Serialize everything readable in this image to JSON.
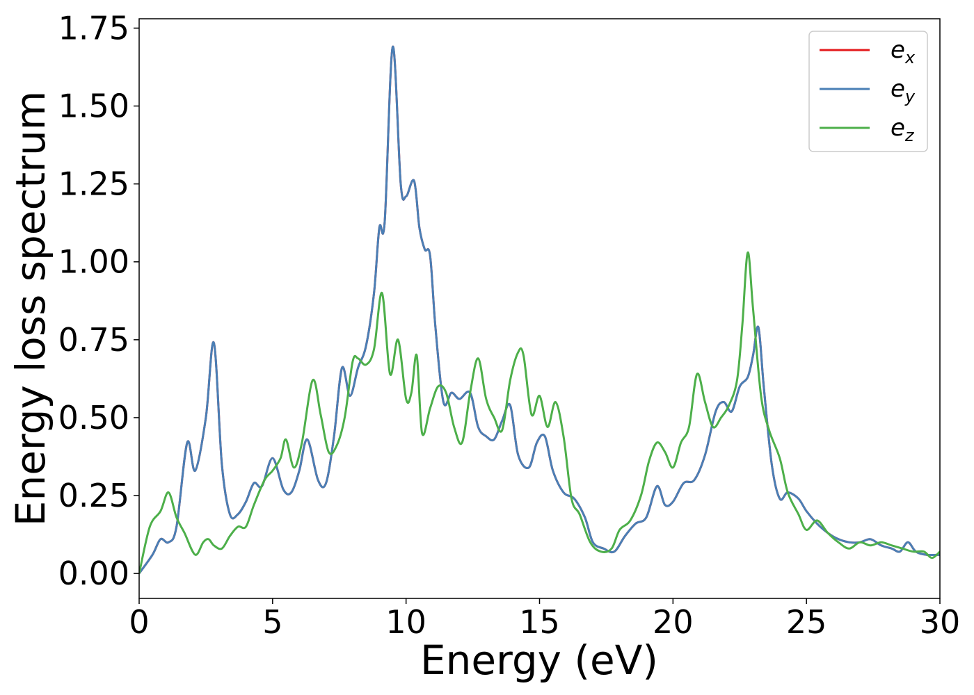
{
  "chart_data": {
    "type": "line",
    "title": "",
    "xlabel": "Energy (eV)",
    "ylabel": "Energy loss spectrum",
    "xlim": [
      0,
      30
    ],
    "ylim": [
      -0.08,
      1.78
    ],
    "xticks": [
      0,
      5,
      10,
      15,
      20,
      25,
      30
    ],
    "xtick_labels": [
      "0",
      "5",
      "10",
      "15",
      "20",
      "25",
      "30"
    ],
    "yticks": [
      0,
      0.25,
      0.5,
      0.75,
      1.0,
      1.25,
      1.5,
      1.75
    ],
    "ytick_labels": [
      "0.00",
      "0.25",
      "0.50",
      "0.75",
      "1.00",
      "1.25",
      "1.50",
      "1.75"
    ],
    "grid": false,
    "legend_position": "top-right",
    "series": [
      {
        "name": "e_x",
        "label_base": "e",
        "label_sub": "x",
        "color": "#e41a1c",
        "x": [
          0,
          0.5,
          0.8,
          1.1,
          1.4,
          1.8,
          2.1,
          2.5,
          2.8,
          3.1,
          3.4,
          3.7,
          4.0,
          4.3,
          4.6,
          5.0,
          5.4,
          5.7,
          6.0,
          6.3,
          6.7,
          7.0,
          7.3,
          7.6,
          7.9,
          8.2,
          8.5,
          8.8,
          9.0,
          9.2,
          9.5,
          9.8,
          10.0,
          10.3,
          10.5,
          10.7,
          10.9,
          11.1,
          11.4,
          11.7,
          12.0,
          12.4,
          12.7,
          13.0,
          13.3,
          13.6,
          13.9,
          14.2,
          14.6,
          14.9,
          15.2,
          15.5,
          15.9,
          16.3,
          16.7,
          17.0,
          17.4,
          17.8,
          18.2,
          18.6,
          19.0,
          19.4,
          19.7,
          20.0,
          20.4,
          20.8,
          21.2,
          21.6,
          21.9,
          22.2,
          22.5,
          22.8,
          23.0,
          23.2,
          23.4,
          23.7,
          24.0,
          24.3,
          24.7,
          25.0,
          25.4,
          25.8,
          26.2,
          26.6,
          27.0,
          27.4,
          27.8,
          28.2,
          28.5,
          28.8,
          29.1,
          29.5,
          30.0
        ],
        "y": [
          0.0,
          0.06,
          0.11,
          0.1,
          0.15,
          0.42,
          0.33,
          0.5,
          0.74,
          0.35,
          0.19,
          0.19,
          0.23,
          0.29,
          0.28,
          0.37,
          0.27,
          0.26,
          0.33,
          0.43,
          0.3,
          0.29,
          0.44,
          0.66,
          0.57,
          0.66,
          0.73,
          0.9,
          1.11,
          1.13,
          1.69,
          1.25,
          1.21,
          1.26,
          1.11,
          1.04,
          1.02,
          0.79,
          0.55,
          0.58,
          0.56,
          0.58,
          0.47,
          0.44,
          0.43,
          0.49,
          0.54,
          0.38,
          0.34,
          0.42,
          0.44,
          0.33,
          0.26,
          0.24,
          0.18,
          0.1,
          0.08,
          0.07,
          0.12,
          0.16,
          0.18,
          0.28,
          0.22,
          0.23,
          0.29,
          0.3,
          0.38,
          0.52,
          0.55,
          0.52,
          0.6,
          0.63,
          0.7,
          0.79,
          0.6,
          0.35,
          0.24,
          0.26,
          0.24,
          0.2,
          0.16,
          0.13,
          0.11,
          0.1,
          0.1,
          0.11,
          0.09,
          0.08,
          0.07,
          0.1,
          0.07,
          0.06,
          0.06
        ]
      },
      {
        "name": "e_y",
        "label_base": "e",
        "label_sub": "y",
        "color": "#4a7fb5",
        "x": [
          0,
          0.5,
          0.8,
          1.1,
          1.4,
          1.8,
          2.1,
          2.5,
          2.8,
          3.1,
          3.4,
          3.7,
          4.0,
          4.3,
          4.6,
          5.0,
          5.4,
          5.7,
          6.0,
          6.3,
          6.7,
          7.0,
          7.3,
          7.6,
          7.9,
          8.2,
          8.5,
          8.8,
          9.0,
          9.2,
          9.5,
          9.8,
          10.0,
          10.3,
          10.5,
          10.7,
          10.9,
          11.1,
          11.4,
          11.7,
          12.0,
          12.4,
          12.7,
          13.0,
          13.3,
          13.6,
          13.9,
          14.2,
          14.6,
          14.9,
          15.2,
          15.5,
          15.9,
          16.3,
          16.7,
          17.0,
          17.4,
          17.8,
          18.2,
          18.6,
          19.0,
          19.4,
          19.7,
          20.0,
          20.4,
          20.8,
          21.2,
          21.6,
          21.9,
          22.2,
          22.5,
          22.8,
          23.0,
          23.2,
          23.4,
          23.7,
          24.0,
          24.3,
          24.7,
          25.0,
          25.4,
          25.8,
          26.2,
          26.6,
          27.0,
          27.4,
          27.8,
          28.2,
          28.5,
          28.8,
          29.1,
          29.5,
          30.0
        ],
        "y": [
          0.0,
          0.06,
          0.11,
          0.1,
          0.15,
          0.42,
          0.33,
          0.5,
          0.74,
          0.35,
          0.19,
          0.19,
          0.23,
          0.29,
          0.28,
          0.37,
          0.27,
          0.26,
          0.33,
          0.43,
          0.3,
          0.29,
          0.44,
          0.66,
          0.57,
          0.66,
          0.73,
          0.9,
          1.11,
          1.13,
          1.69,
          1.25,
          1.21,
          1.26,
          1.11,
          1.04,
          1.02,
          0.79,
          0.55,
          0.58,
          0.56,
          0.58,
          0.47,
          0.44,
          0.43,
          0.49,
          0.54,
          0.38,
          0.34,
          0.42,
          0.44,
          0.33,
          0.26,
          0.24,
          0.18,
          0.1,
          0.08,
          0.07,
          0.12,
          0.16,
          0.18,
          0.28,
          0.22,
          0.23,
          0.29,
          0.3,
          0.38,
          0.52,
          0.55,
          0.52,
          0.6,
          0.63,
          0.7,
          0.79,
          0.6,
          0.35,
          0.24,
          0.26,
          0.24,
          0.2,
          0.16,
          0.13,
          0.11,
          0.1,
          0.1,
          0.11,
          0.09,
          0.08,
          0.07,
          0.1,
          0.07,
          0.06,
          0.06
        ]
      },
      {
        "name": "e_z",
        "label_base": "e",
        "label_sub": "z",
        "color": "#4daf4a",
        "x": [
          0,
          0.4,
          0.8,
          1.1,
          1.4,
          1.7,
          2.1,
          2.4,
          2.6,
          2.8,
          3.1,
          3.4,
          3.7,
          4.0,
          4.3,
          4.7,
          5.0,
          5.3,
          5.5,
          5.8,
          6.1,
          6.5,
          6.8,
          7.1,
          7.4,
          7.7,
          8.0,
          8.2,
          8.5,
          8.8,
          9.1,
          9.4,
          9.7,
          10.0,
          10.2,
          10.4,
          10.6,
          10.9,
          11.2,
          11.5,
          11.8,
          12.1,
          12.4,
          12.7,
          13.0,
          13.3,
          13.6,
          13.9,
          14.2,
          14.4,
          14.7,
          15.0,
          15.3,
          15.6,
          15.9,
          16.2,
          16.5,
          16.9,
          17.3,
          17.7,
          18.0,
          18.4,
          18.8,
          19.1,
          19.4,
          19.7,
          20.0,
          20.3,
          20.6,
          20.9,
          21.2,
          21.5,
          21.8,
          22.1,
          22.4,
          22.6,
          22.8,
          23.0,
          23.3,
          23.6,
          24.0,
          24.3,
          24.7,
          25.0,
          25.4,
          25.8,
          26.2,
          26.6,
          27.0,
          27.4,
          27.8,
          28.2,
          28.6,
          29.0,
          29.4,
          29.7,
          30.0
        ],
        "y": [
          0.0,
          0.15,
          0.2,
          0.26,
          0.18,
          0.13,
          0.06,
          0.1,
          0.11,
          0.09,
          0.08,
          0.12,
          0.15,
          0.15,
          0.22,
          0.3,
          0.33,
          0.37,
          0.43,
          0.34,
          0.42,
          0.62,
          0.51,
          0.39,
          0.41,
          0.5,
          0.68,
          0.69,
          0.67,
          0.72,
          0.9,
          0.64,
          0.75,
          0.56,
          0.58,
          0.7,
          0.45,
          0.53,
          0.6,
          0.58,
          0.47,
          0.42,
          0.58,
          0.69,
          0.56,
          0.5,
          0.46,
          0.62,
          0.71,
          0.7,
          0.51,
          0.57,
          0.47,
          0.55,
          0.44,
          0.24,
          0.19,
          0.1,
          0.07,
          0.08,
          0.14,
          0.17,
          0.25,
          0.36,
          0.42,
          0.39,
          0.34,
          0.42,
          0.47,
          0.64,
          0.55,
          0.47,
          0.5,
          0.54,
          0.62,
          0.8,
          1.03,
          0.85,
          0.57,
          0.46,
          0.37,
          0.26,
          0.19,
          0.14,
          0.17,
          0.13,
          0.1,
          0.08,
          0.1,
          0.09,
          0.1,
          0.09,
          0.08,
          0.07,
          0.07,
          0.05,
          0.07
        ]
      }
    ]
  }
}
